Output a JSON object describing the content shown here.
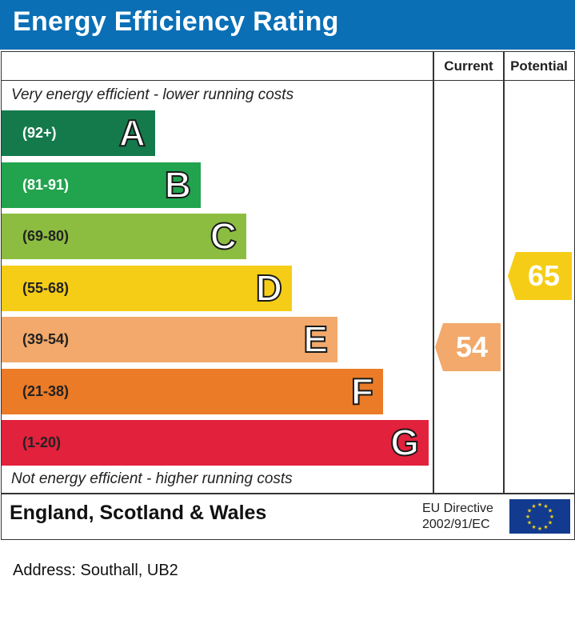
{
  "header": {
    "title": "Energy Efficiency Rating"
  },
  "columns": {
    "current": "Current",
    "potential": "Potential"
  },
  "notes": {
    "top": "Very energy efficient - lower running costs",
    "bottom": "Not energy efficient - higher running costs"
  },
  "footer": {
    "region": "England, Scotland & Wales",
    "directive_line1": "EU Directive",
    "directive_line2": "2002/91/EC",
    "flag_icon": "eu-flag-icon"
  },
  "address": "Address: Southall, UB2",
  "chart_data": {
    "type": "bar",
    "title": "Energy Efficiency Rating",
    "categories": [
      "A",
      "B",
      "C",
      "D",
      "E",
      "F",
      "G"
    ],
    "bands": [
      {
        "letter": "A",
        "range": "(92+)",
        "min": 92,
        "max": 100,
        "color": "#147a4c"
      },
      {
        "letter": "B",
        "range": "(81-91)",
        "min": 81,
        "max": 91,
        "color": "#22a34e"
      },
      {
        "letter": "C",
        "range": "(69-80)",
        "min": 69,
        "max": 80,
        "color": "#8cbd41"
      },
      {
        "letter": "D",
        "range": "(55-68)",
        "min": 55,
        "max": 68,
        "color": "#f5cd17"
      },
      {
        "letter": "E",
        "range": "(39-54)",
        "min": 39,
        "max": 54,
        "color": "#f2a96b"
      },
      {
        "letter": "F",
        "range": "(21-38)",
        "min": 21,
        "max": 38,
        "color": "#eb7b27"
      },
      {
        "letter": "G",
        "range": "(1-20)",
        "min": 1,
        "max": 20,
        "color": "#e2213c"
      }
    ],
    "current": {
      "value": 54,
      "band": "E",
      "color": "#f2a96b"
    },
    "potential": {
      "value": 65,
      "band": "D",
      "color": "#f5cd17"
    }
  }
}
